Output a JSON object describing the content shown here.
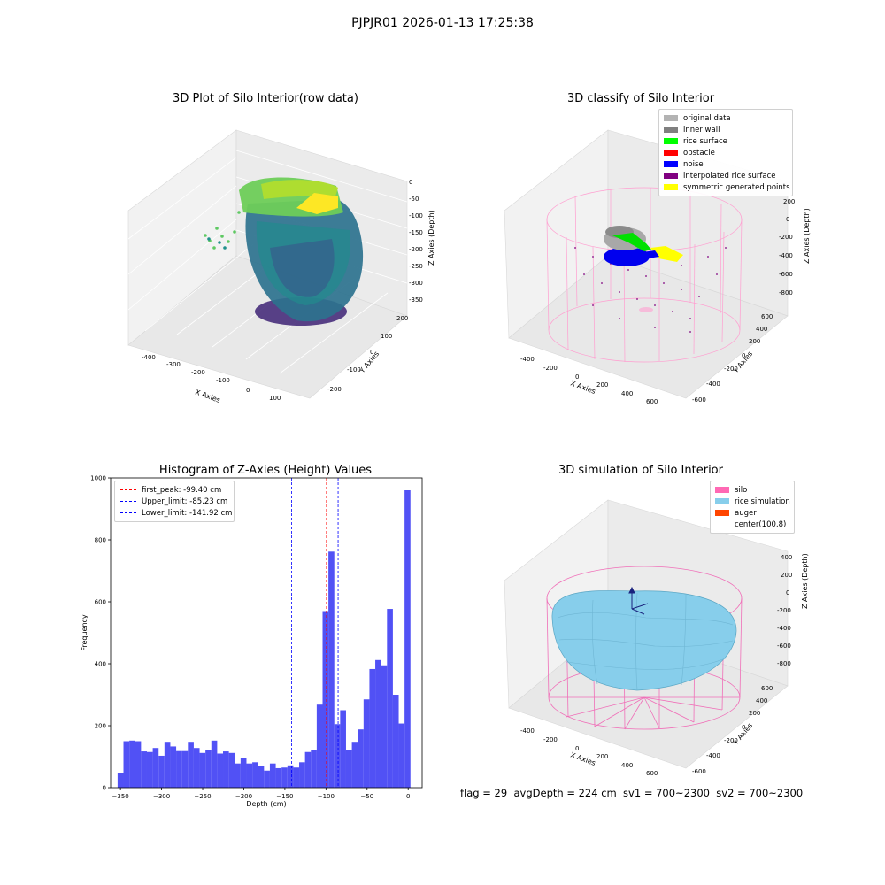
{
  "suptitle": "PJPJR01 2026-01-13 17:25:38",
  "panel1": {
    "title": "3D Plot of Silo Interior(row data)",
    "xlabel": "X Axies",
    "ylabel": "Y Axies",
    "zlabel": "Z Axies (Depth)",
    "xticks": [
      "-400",
      "-300",
      "-200",
      "-100",
      "0",
      "100"
    ],
    "yticks": [
      "-200",
      "-100",
      "0",
      "100",
      "200"
    ],
    "zticks": [
      "0",
      "-50",
      "-100",
      "-150",
      "-200",
      "-250",
      "-300",
      "-350"
    ]
  },
  "panel2": {
    "title": "3D classify of Silo Interior",
    "xlabel": "X Axies",
    "ylabel": "Y Axies",
    "zlabel": "Z Axies (Depth)",
    "xticks": [
      "-400",
      "-200",
      "0",
      "200",
      "400",
      "600"
    ],
    "yticks": [
      "-600",
      "-400",
      "-200",
      "0",
      "200",
      "400",
      "600"
    ],
    "zticks": [
      "200",
      "0",
      "-200",
      "-400",
      "-600",
      "-800"
    ],
    "legend": [
      {
        "label": "original data",
        "color": "#b3b3b3"
      },
      {
        "label": "inner wall",
        "color": "#808080"
      },
      {
        "label": "rice surface",
        "color": "#00ff00"
      },
      {
        "label": "obstacle",
        "color": "#ff0000"
      },
      {
        "label": "noise",
        "color": "#0000ff"
      },
      {
        "label": "interpolated rice surface",
        "color": "#800080"
      },
      {
        "label": "symmetric generated points",
        "color": "#ffff00"
      }
    ]
  },
  "panel3": {
    "title": "3D simulation of Silo Interior",
    "xlabel": "X Axies",
    "ylabel": "Y Axies",
    "zlabel": "Z Axies (Depth)",
    "xticks": [
      "-400",
      "-200",
      "0",
      "200",
      "400",
      "600"
    ],
    "yticks": [
      "-600",
      "-400",
      "-200",
      "0",
      "200",
      "400",
      "600"
    ],
    "zticks": [
      "400",
      "200",
      "0",
      "-200",
      "-400",
      "-600",
      "-800"
    ],
    "legend": [
      {
        "label": "silo",
        "color": "#ff69b4"
      },
      {
        "label": "rice simulation",
        "color": "#87ceeb"
      },
      {
        "label": "auger",
        "color": "#ff4500"
      },
      {
        "label": "center(100,8)",
        "color": ""
      }
    ]
  },
  "status_line": "flag = 29  avgDepth = 224 cm  sv1 = 700~2300  sv2 = 700~2300",
  "chart_data": [
    {
      "type": "bar",
      "title": "Histogram of Z-Axies (Height) Values",
      "xlabel": "Depth (cm)",
      "ylabel": "Frequency",
      "xlim": [
        -362,
        17
      ],
      "ylim": [
        0,
        1000
      ],
      "xticks": [
        -350,
        -300,
        -250,
        -200,
        -150,
        -100,
        -50,
        0
      ],
      "yticks": [
        0,
        200,
        400,
        600,
        800,
        1000
      ],
      "bin_start": -353.5,
      "bin_width": 7.125,
      "color": "#4b4bf5",
      "values": [
        48,
        150,
        152,
        150,
        117,
        115,
        128,
        103,
        148,
        133,
        118,
        118,
        148,
        128,
        112,
        122,
        152,
        110,
        117,
        112,
        78,
        97,
        78,
        82,
        70,
        55,
        78,
        63,
        65,
        72,
        65,
        82,
        115,
        120,
        268,
        570,
        762,
        205,
        250,
        120,
        148,
        188,
        285,
        383,
        412,
        395,
        577,
        300,
        207,
        960
      ],
      "vlines": [
        {
          "label": "first_peak: -99.40 cm",
          "x": -99.4,
          "color": "#ff0000"
        },
        {
          "label": "Upper_limit: -85.23 cm",
          "x": -85.23,
          "color": "#0000ff"
        },
        {
          "label": "Lower_limit: -141.92 cm",
          "x": -141.92,
          "color": "#0000ff"
        }
      ]
    }
  ]
}
